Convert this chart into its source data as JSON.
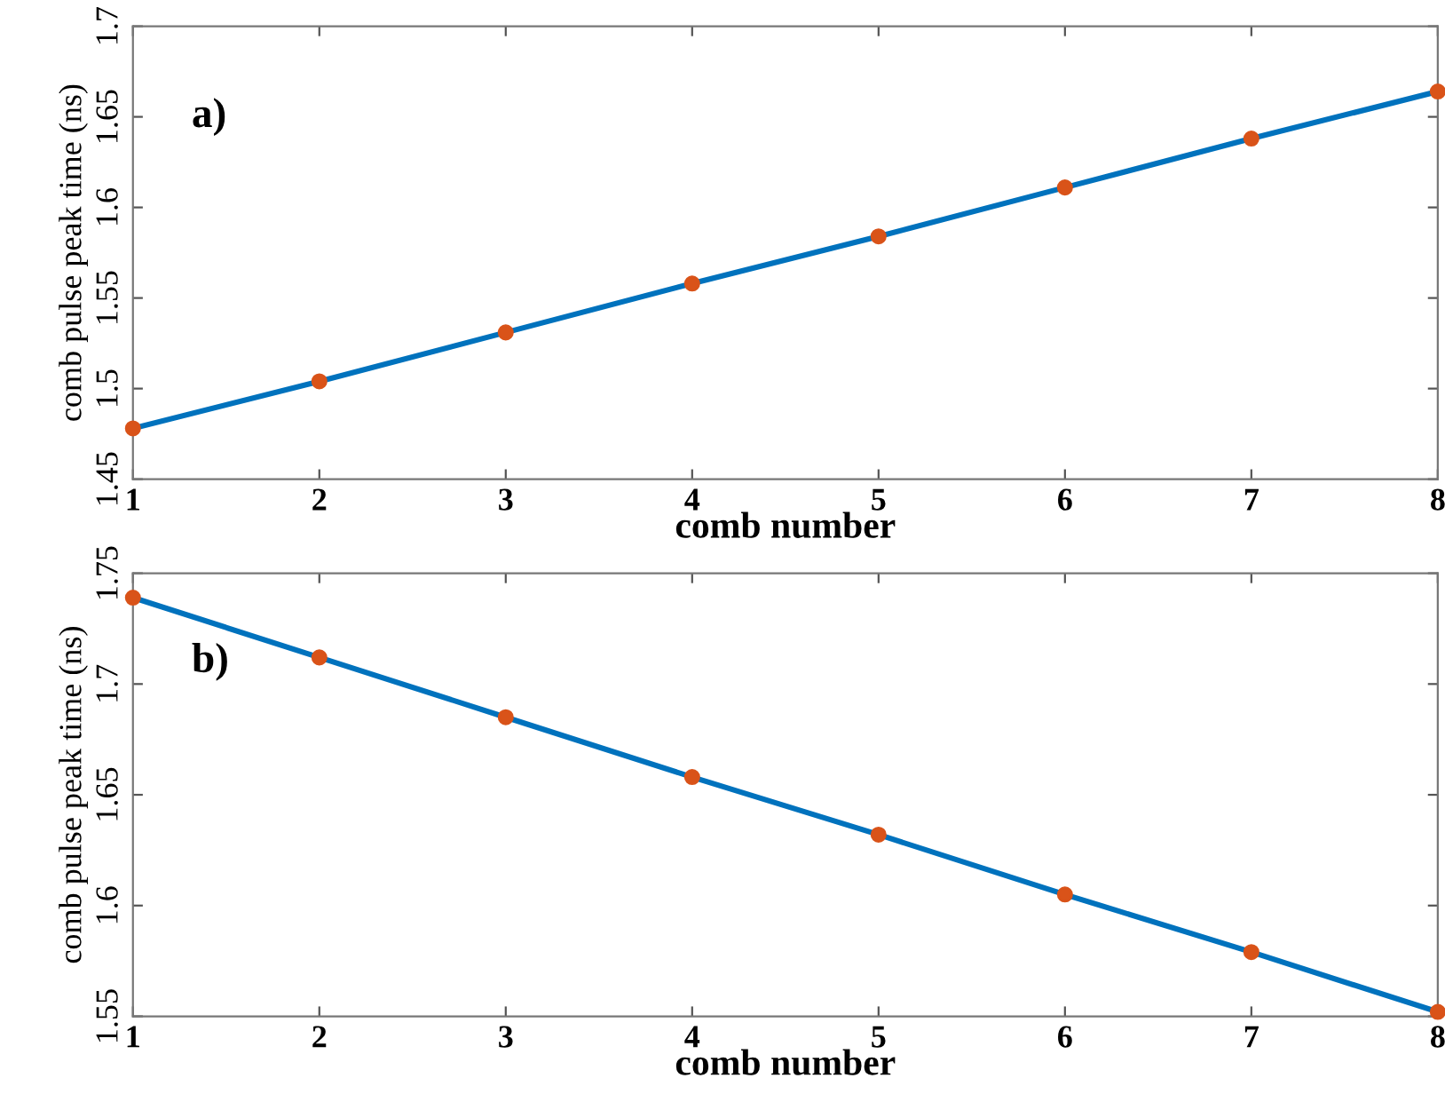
{
  "chart_data": [
    {
      "type": "line",
      "xlabel": "comb number",
      "ylabel": "comb pulse peak time (ns)",
      "annotations": [
        "a)"
      ],
      "x": [
        1,
        2,
        3,
        4,
        5,
        6,
        7,
        8
      ],
      "xlim": [
        1,
        8
      ],
      "xticks": [
        1,
        2,
        3,
        4,
        5,
        6,
        7,
        8
      ],
      "ylim": [
        1.45,
        1.7
      ],
      "yticks": [
        1.45,
        1.5,
        1.55,
        1.6,
        1.65,
        1.7
      ],
      "grid": false,
      "legend": false,
      "series": [
        {
          "color": "#0072bd",
          "values": [
            1.478,
            1.504,
            1.531,
            1.558,
            1.584,
            1.611,
            1.638,
            1.664
          ]
        },
        {
          "type": "scatter",
          "marker": "circle",
          "color": "#d95319",
          "values": [
            1.478,
            1.504,
            1.531,
            1.558,
            1.584,
            1.611,
            1.638,
            1.664
          ]
        }
      ]
    },
    {
      "type": "line",
      "xlabel": "comb number",
      "ylabel": "comb pulse peak time (ns)",
      "annotations": [
        "b)"
      ],
      "x": [
        1,
        2,
        3,
        4,
        5,
        6,
        7,
        8
      ],
      "xlim": [
        1,
        8
      ],
      "xticks": [
        1,
        2,
        3,
        4,
        5,
        6,
        7,
        8
      ],
      "ylim": [
        1.55,
        1.75
      ],
      "yticks": [
        1.55,
        1.6,
        1.65,
        1.7,
        1.75
      ],
      "grid": false,
      "legend": false,
      "series": [
        {
          "color": "#0072bd",
          "values": [
            1.739,
            1.712,
            1.685,
            1.658,
            1.632,
            1.605,
            1.579,
            1.552
          ]
        },
        {
          "type": "scatter",
          "marker": "circle",
          "color": "#d95319",
          "values": [
            1.739,
            1.712,
            1.685,
            1.658,
            1.632,
            1.605,
            1.579,
            1.552
          ]
        }
      ]
    }
  ]
}
